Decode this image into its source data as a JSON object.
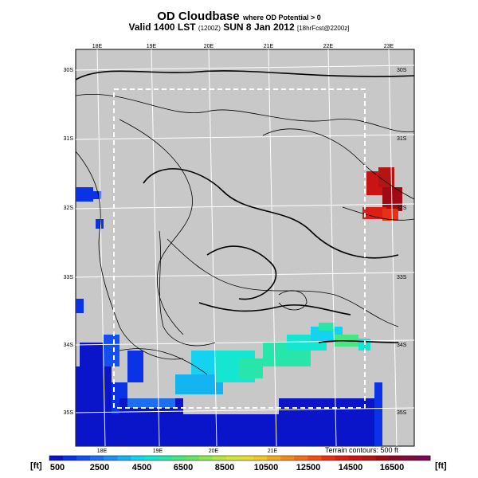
{
  "title": {
    "main": "OD Cloudbase",
    "note": "where OD Potential > 0",
    "valid_prefix": "Valid 1400 LST",
    "utc": "(1200Z)",
    "date": "SUN 8 Jan 2012",
    "forecast": "[18hrFcst@2200z]"
  },
  "map": {
    "longitude_labels_top": [
      "18E",
      "19E",
      "20E",
      "21E",
      "22E",
      "23E"
    ],
    "longitude_labels_bottom": [
      "18E",
      "19E",
      "20E",
      "21E"
    ],
    "latitude_labels_left": [
      "30S",
      "31S",
      "32S",
      "33S",
      "34S",
      "35S"
    ],
    "latitude_labels_right": [
      "30S",
      "31S",
      "32S",
      "33S",
      "34S",
      "35S"
    ],
    "terrain_note": "Terrain contours: 500 ft",
    "background_color": "#c8c8c8"
  },
  "colorbar": {
    "unit_left": "[ft]",
    "unit_right": "[ft]",
    "tick_labels": [
      "500",
      "2500",
      "4500",
      "6500",
      "8500",
      "10500",
      "12500",
      "14500",
      "16500"
    ],
    "colors": [
      "#0a14c8",
      "#0a32e6",
      "#1450f0",
      "#1e6ef0",
      "#1e90f0",
      "#14b4f0",
      "#14d2f0",
      "#14e6d2",
      "#28e6aa",
      "#46e682",
      "#64e664",
      "#8ce650",
      "#b4e646",
      "#d2e63c",
      "#e6dc32",
      "#f0c828",
      "#f0aa1e",
      "#f08c1e",
      "#f06e1e",
      "#f05014",
      "#e63214",
      "#dc1e14",
      "#c81414",
      "#b41414",
      "#a00a14",
      "#8c0a28",
      "#820a3c",
      "#780a50"
    ]
  }
}
